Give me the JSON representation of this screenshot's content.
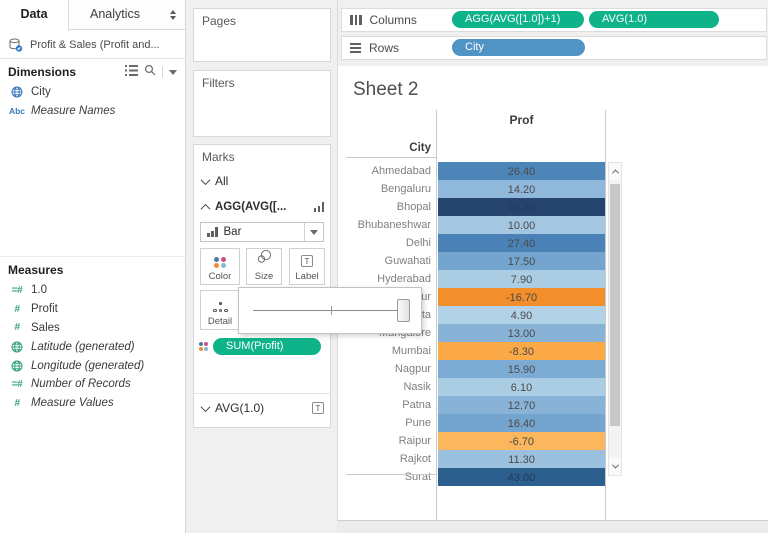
{
  "data_pane": {
    "tabs": [
      {
        "label": "Data"
      },
      {
        "label": "Analytics"
      }
    ],
    "datasource_label": "Profit & Sales (Profit and...",
    "dimensions": {
      "header": "Dimensions",
      "items": [
        {
          "label": "City",
          "icon": "globe",
          "italic": false
        },
        {
          "label": "Measure Names",
          "icon": "abc",
          "italic": true
        }
      ]
    },
    "measures": {
      "header": "Measures",
      "items": [
        {
          "label": "1.0",
          "icon": "calc-number",
          "italic": false
        },
        {
          "label": "Profit",
          "icon": "number",
          "italic": false
        },
        {
          "label": "Sales",
          "icon": "number",
          "italic": false
        },
        {
          "label": "Latitude (generated)",
          "icon": "globe",
          "italic": true
        },
        {
          "label": "Longitude (generated)",
          "icon": "globe",
          "italic": true
        },
        {
          "label": "Number of Records",
          "icon": "calc-number",
          "italic": true
        },
        {
          "label": "Measure Values",
          "icon": "number",
          "italic": true
        }
      ]
    }
  },
  "cards": {
    "pages_label": "Pages",
    "filters_label": "Filters",
    "marks": {
      "header": "Marks",
      "all_label": "All",
      "agg_label": "AGG(AVG([...",
      "mark_type_label": "Bar",
      "color_button": "Color",
      "size_button": "Size",
      "label_button": "Label",
      "detail_button": "Detail",
      "color_pill": "SUM(Profit)",
      "avg_label": "AVG(1.0)"
    }
  },
  "shelves": {
    "columns_label": "Columns",
    "rows_label": "Rows",
    "columns_pills": [
      {
        "label": "AGG(AVG([1.0])+1)",
        "color": "#0fb389"
      },
      {
        "label": "AVG(1.0)",
        "color": "#0fb389"
      }
    ],
    "rows_pills": [
      {
        "label": "City",
        "color": "#4f94c5"
      }
    ]
  },
  "sheet": {
    "title": "Sheet 2",
    "column_header": "Prof",
    "row_header": "City",
    "rows": [
      {
        "city": "Ahmedabad",
        "value": "26.40",
        "color": "#4d85b9"
      },
      {
        "city": "Bengaluru",
        "value": "14.20",
        "color": "#8fb8da"
      },
      {
        "city": "Bhopal",
        "value": "48.30",
        "color": "#26456e",
        "text": "#233c5c"
      },
      {
        "city": "Bhubaneshwar",
        "value": "10.00",
        "color": "#a3c7e1"
      },
      {
        "city": "Delhi",
        "value": "27.40",
        "color": "#4a82b7"
      },
      {
        "city": "Guwahati",
        "value": "17.50",
        "color": "#74a5ce"
      },
      {
        "city": "Hyderabad",
        "value": "7.90",
        "color": "#aacde4"
      },
      {
        "city": "Jaipur",
        "value": "-16.70",
        "color": "#f28e2c"
      },
      {
        "city": "Kolkata",
        "value": "4.90",
        "color": "#b2d2e8"
      },
      {
        "city": "Mangalore",
        "value": "13.00",
        "color": "#89b3d6"
      },
      {
        "city": "Mumbai",
        "value": "-8.30",
        "color": "#fbaa47"
      },
      {
        "city": "Nagpur",
        "value": "15.90",
        "color": "#7babd2"
      },
      {
        "city": "Nasik",
        "value": "6.10",
        "color": "#aacde4"
      },
      {
        "city": "Patna",
        "value": "12.70",
        "color": "#89b3d6"
      },
      {
        "city": "Pune",
        "value": "16.40",
        "color": "#74a5ce"
      },
      {
        "city": "Raipur",
        "value": "-6.70",
        "color": "#fcb75e"
      },
      {
        "city": "Rajkot",
        "value": "11.30",
        "color": "#9cc1de"
      },
      {
        "city": "Surat",
        "value": "43.00",
        "color": "#2d5f8e",
        "text": "#1d3a58"
      }
    ]
  },
  "colors": {
    "pill_green": "#0fb389",
    "pill_blue": "#4f94c5"
  }
}
